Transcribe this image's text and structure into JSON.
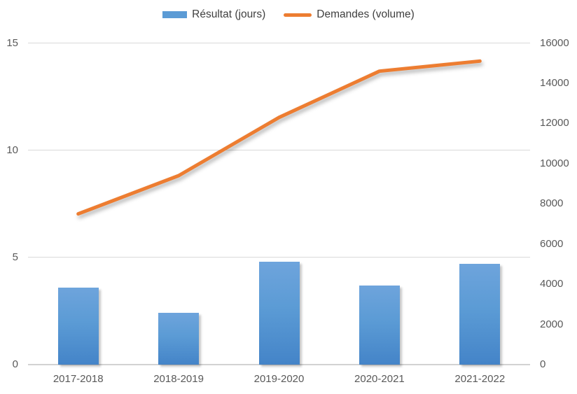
{
  "chart_data": {
    "type": "combo",
    "title": "",
    "categories": [
      "2017-2018",
      "2018-2019",
      "2019-2020",
      "2020-2021",
      "2021-2022"
    ],
    "series": [
      {
        "name": "Résultat (jours)",
        "type": "bar",
        "axis": "left",
        "color": "#5B9BD5",
        "values": [
          3.6,
          2.4,
          4.8,
          3.7,
          4.7
        ]
      },
      {
        "name": "Demandes (volume)",
        "type": "line",
        "axis": "right",
        "color": "#ED7D31",
        "values": [
          7500,
          9400,
          12300,
          14600,
          15100
        ]
      }
    ],
    "left_axis": {
      "min": 0,
      "max": 15,
      "ticks": [
        0,
        5,
        10,
        15
      ]
    },
    "right_axis": {
      "min": 0,
      "max": 16000,
      "ticks": [
        0,
        2000,
        4000,
        6000,
        8000,
        10000,
        12000,
        14000,
        16000
      ]
    },
    "grid": true,
    "legend_position": "top"
  },
  "colors": {
    "bar_fill": "#5B9BD5",
    "bar_gradient_top": "#6EA4DC",
    "bar_gradient_bottom": "#4484C8",
    "line_stroke": "#ED7D31",
    "gridline": "#D9D9D9",
    "axis_text": "#595959",
    "legend_text": "#3F3F3F",
    "background": "#FFFFFF"
  }
}
